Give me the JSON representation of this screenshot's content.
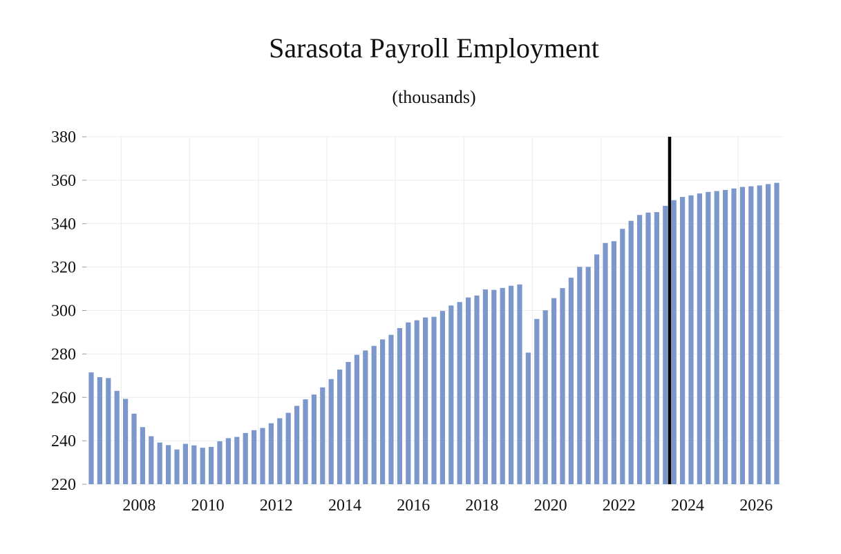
{
  "chart_data": {
    "type": "bar",
    "title": "Sarasota Payroll Employment",
    "subtitle": "(thousands)",
    "xlabel": "",
    "ylabel": "",
    "ylim": [
      220,
      380
    ],
    "yticks": [
      220,
      240,
      260,
      280,
      300,
      320,
      340,
      360,
      380
    ],
    "xticks": [
      "2008",
      "2010",
      "2012",
      "2014",
      "2016",
      "2018",
      "2020",
      "2022",
      "2024",
      "2026"
    ],
    "first_period": "2007 Q1",
    "period_step": "quarter",
    "forecast_line_after": "2023 Q4",
    "bar_color": "#7b97cc",
    "line_color": "#000000",
    "grid": true,
    "values": [
      271.5,
      269.3,
      268.9,
      263.0,
      259.3,
      252.5,
      246.3,
      242.1,
      239.2,
      238.0,
      236.0,
      238.6,
      237.9,
      236.8,
      237.2,
      239.8,
      241.2,
      241.8,
      243.6,
      244.9,
      245.9,
      248.1,
      250.4,
      252.9,
      256.1,
      259.1,
      261.3,
      264.6,
      268.4,
      272.8,
      276.3,
      279.6,
      281.6,
      283.7,
      286.7,
      288.8,
      291.9,
      294.5,
      295.5,
      296.8,
      297.1,
      299.8,
      302.3,
      303.9,
      306.0,
      306.9,
      309.7,
      309.5,
      310.4,
      311.4,
      312.0,
      280.6,
      296.1,
      300.1,
      305.7,
      310.3,
      315.1,
      320.1,
      320.1,
      325.8,
      331.1,
      331.9,
      337.6,
      341.3,
      344.0,
      345.1,
      345.3,
      348.2,
      350.8,
      352.3,
      353.0,
      353.9,
      354.6,
      355.0,
      355.5,
      356.2,
      356.9,
      357.2,
      357.6,
      358.2,
      358.8
    ]
  }
}
